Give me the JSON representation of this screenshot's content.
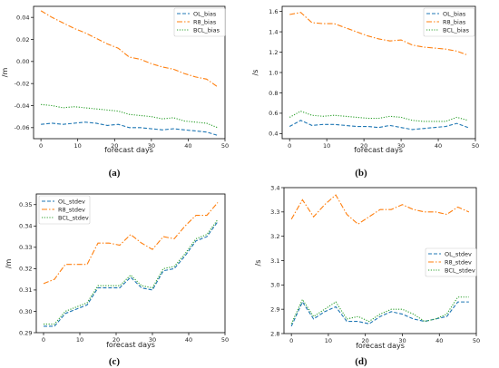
{
  "chart_data": [
    {
      "type": "line",
      "panel_label": "(a)",
      "xlabel": "forecast days",
      "ylabel": "/m",
      "xlim": [
        -2,
        50
      ],
      "ylim": [
        -0.07,
        0.05
      ],
      "xticks": [
        "0",
        "10",
        "20",
        "30",
        "40",
        "50"
      ],
      "yticks": [
        "0.04",
        "0.02",
        "0.00",
        "-0.02",
        "-0.04",
        "-0.06"
      ],
      "x": [
        0,
        3,
        6,
        9,
        12,
        15,
        18,
        21,
        24,
        27,
        30,
        33,
        36,
        39,
        42,
        45,
        48
      ],
      "series": [
        {
          "name": "OL_bias",
          "values": [
            -0.057,
            -0.056,
            -0.057,
            -0.056,
            -0.055,
            -0.056,
            -0.058,
            -0.057,
            -0.06,
            -0.06,
            -0.061,
            -0.062,
            -0.061,
            -0.062,
            -0.063,
            -0.064,
            -0.067
          ]
        },
        {
          "name": "R8_bias",
          "values": [
            0.046,
            0.04,
            0.035,
            0.03,
            0.026,
            0.021,
            0.016,
            0.012,
            0.004,
            0.002,
            -0.002,
            -0.005,
            -0.007,
            -0.011,
            -0.014,
            -0.016,
            -0.023
          ]
        },
        {
          "name": "BCL_bias",
          "values": [
            -0.039,
            -0.04,
            -0.042,
            -0.041,
            -0.042,
            -0.043,
            -0.044,
            -0.045,
            -0.048,
            -0.049,
            -0.05,
            -0.052,
            -0.051,
            -0.054,
            -0.055,
            -0.056,
            -0.06
          ]
        }
      ],
      "legend": "top-right"
    },
    {
      "type": "line",
      "panel_label": "(b)",
      "xlabel": "forecast days",
      "ylabel": "/s",
      "xlim": [
        -2,
        50
      ],
      "ylim": [
        0.35,
        1.65
      ],
      "xticks": [
        "0",
        "10",
        "20",
        "30",
        "40",
        "50"
      ],
      "yticks": [
        "1.6",
        "1.4",
        "1.2",
        "1.0",
        "0.8",
        "0.6",
        "0.4"
      ],
      "x": [
        0,
        3,
        6,
        9,
        12,
        15,
        18,
        21,
        24,
        27,
        30,
        33,
        36,
        39,
        42,
        45,
        48
      ],
      "series": [
        {
          "name": "OL_bias",
          "values": [
            0.47,
            0.53,
            0.48,
            0.49,
            0.49,
            0.48,
            0.47,
            0.47,
            0.46,
            0.48,
            0.46,
            0.44,
            0.45,
            0.46,
            0.47,
            0.5,
            0.46
          ]
        },
        {
          "name": "R8_bias",
          "values": [
            1.57,
            1.59,
            1.49,
            1.48,
            1.48,
            1.44,
            1.4,
            1.36,
            1.33,
            1.31,
            1.32,
            1.27,
            1.25,
            1.24,
            1.23,
            1.21,
            1.17
          ]
        },
        {
          "name": "BCL_bias",
          "values": [
            0.56,
            0.62,
            0.58,
            0.57,
            0.58,
            0.57,
            0.56,
            0.55,
            0.55,
            0.57,
            0.56,
            0.53,
            0.52,
            0.52,
            0.52,
            0.56,
            0.53
          ]
        }
      ],
      "legend": "top-right"
    },
    {
      "type": "line",
      "panel_label": "(c)",
      "xlabel": "forecast days",
      "ylabel": "/m",
      "xlim": [
        -2,
        50
      ],
      "ylim": [
        0.29,
        0.355
      ],
      "xticks": [
        "0",
        "10",
        "20",
        "30",
        "40",
        "50"
      ],
      "yticks": [
        "0.35",
        "0.34",
        "0.33",
        "0.32",
        "0.31",
        "0.30",
        "0.29"
      ],
      "x": [
        0,
        3,
        6,
        9,
        12,
        15,
        18,
        21,
        24,
        27,
        30,
        33,
        36,
        39,
        42,
        45,
        48
      ],
      "series": [
        {
          "name": "OL_stdev",
          "values": [
            0.293,
            0.293,
            0.299,
            0.301,
            0.303,
            0.311,
            0.311,
            0.311,
            0.316,
            0.311,
            0.31,
            0.319,
            0.32,
            0.326,
            0.333,
            0.335,
            0.342
          ]
        },
        {
          "name": "R8_stdev",
          "values": [
            0.313,
            0.315,
            0.322,
            0.322,
            0.322,
            0.332,
            0.332,
            0.331,
            0.336,
            0.332,
            0.329,
            0.335,
            0.334,
            0.34,
            0.345,
            0.345,
            0.351
          ]
        },
        {
          "name": "BCL_stdev",
          "values": [
            0.294,
            0.294,
            0.3,
            0.302,
            0.304,
            0.312,
            0.312,
            0.312,
            0.317,
            0.312,
            0.311,
            0.32,
            0.321,
            0.327,
            0.334,
            0.336,
            0.343
          ]
        }
      ],
      "legend": "top-left"
    },
    {
      "type": "line",
      "panel_label": "(d)",
      "xlabel": "forecast days",
      "ylabel": "/s",
      "xlim": [
        -2,
        50
      ],
      "ylim": [
        2.8,
        3.4
      ],
      "xticks": [
        "0",
        "10",
        "20",
        "30",
        "40",
        "50"
      ],
      "yticks": [
        "3.4",
        "3.3",
        "3.2",
        "3.1",
        "3.0",
        "2.9",
        "2.8"
      ],
      "x": [
        0,
        3,
        6,
        9,
        12,
        15,
        18,
        21,
        24,
        27,
        30,
        33,
        36,
        39,
        42,
        45,
        48
      ],
      "series": [
        {
          "name": "OL_stdev",
          "values": [
            2.83,
            2.93,
            2.86,
            2.89,
            2.91,
            2.85,
            2.85,
            2.84,
            2.87,
            2.89,
            2.88,
            2.86,
            2.85,
            2.86,
            2.87,
            2.93,
            2.93
          ]
        },
        {
          "name": "R8_stdev",
          "values": [
            3.27,
            3.35,
            3.28,
            3.33,
            3.37,
            3.29,
            3.25,
            3.28,
            3.31,
            3.31,
            3.33,
            3.31,
            3.3,
            3.3,
            3.29,
            3.32,
            3.3
          ]
        },
        {
          "name": "BCL_stdev",
          "values": [
            2.84,
            2.94,
            2.87,
            2.9,
            2.93,
            2.86,
            2.87,
            2.85,
            2.88,
            2.9,
            2.9,
            2.88,
            2.85,
            2.86,
            2.88,
            2.95,
            2.95
          ]
        }
      ],
      "legend": "center-right"
    }
  ],
  "colors": {
    "series_1": "#1f77b4",
    "series_2": "#ff7f0e",
    "series_3": "#2ca02c"
  },
  "line_styles": [
    "dashed",
    "dashdot",
    "dotted"
  ]
}
